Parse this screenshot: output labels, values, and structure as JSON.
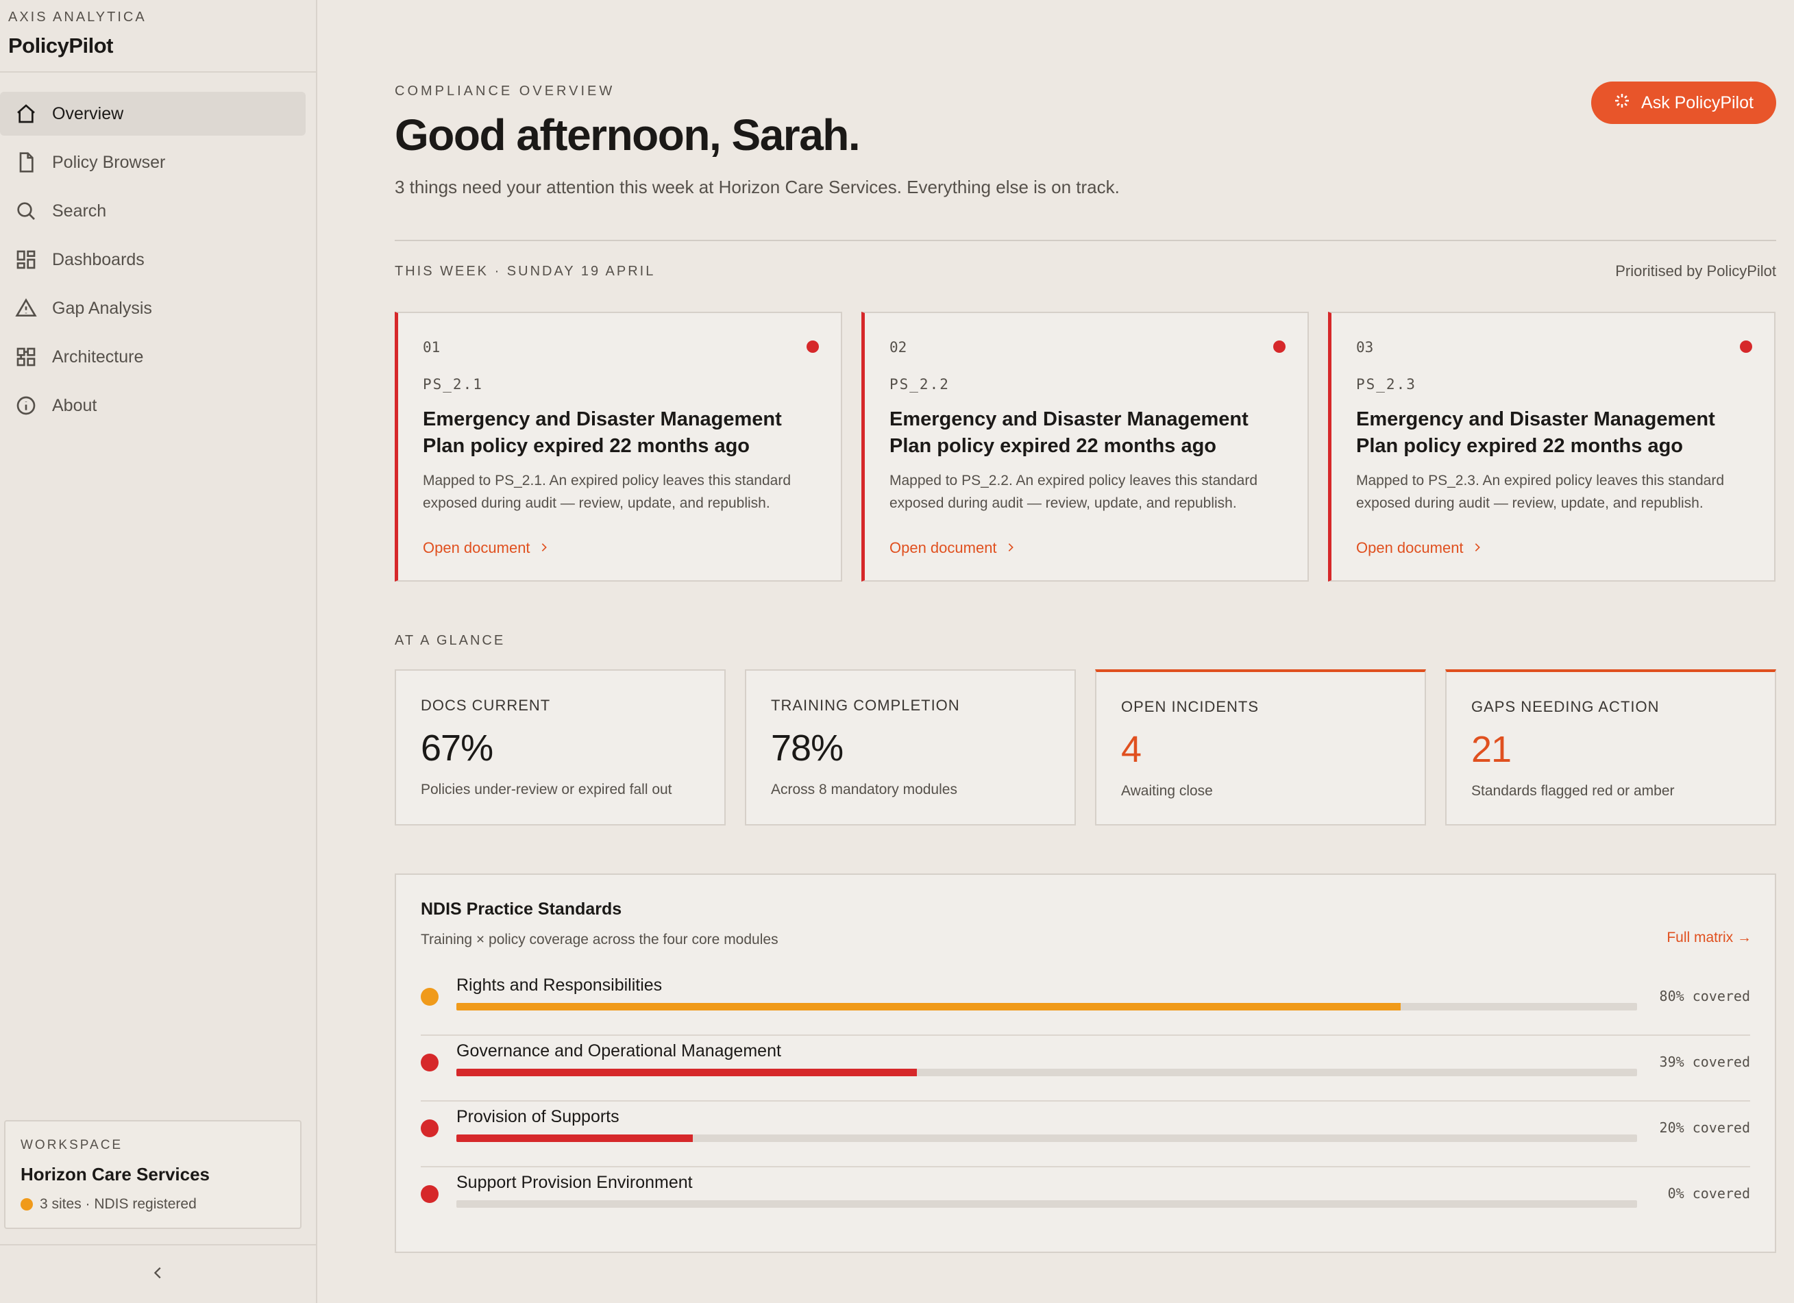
{
  "brand": {
    "org": "AXIS ANALYTICA",
    "app": "PolicyPilot"
  },
  "nav": [
    {
      "label": "Overview",
      "icon": "home-icon",
      "active": true
    },
    {
      "label": "Policy Browser",
      "icon": "document-icon",
      "active": false
    },
    {
      "label": "Search",
      "icon": "search-icon",
      "active": false
    },
    {
      "label": "Dashboards",
      "icon": "dashboard-icon",
      "active": false
    },
    {
      "label": "Gap Analysis",
      "icon": "warning-icon",
      "active": false
    },
    {
      "label": "Architecture",
      "icon": "architecture-icon",
      "active": false
    },
    {
      "label": "About",
      "icon": "info-icon",
      "active": false
    }
  ],
  "workspace": {
    "label": "WORKSPACE",
    "name": "Horizon Care Services",
    "meta": "3 sites · NDIS registered",
    "status_color": "#f09a1a"
  },
  "header": {
    "eyebrow": "COMPLIANCE OVERVIEW",
    "greeting": "Good afternoon, Sarah.",
    "subtitle": "3 things need your attention this week at Horizon Care Services. Everything else is on track.",
    "ask_button": "Ask PolicyPilot"
  },
  "week": {
    "label": "THIS WEEK · SUNDAY 19 APRIL",
    "prioritised": "Prioritised by PolicyPilot"
  },
  "cards": [
    {
      "num": "01",
      "code": "PS_2.1",
      "title": "Emergency and Disaster Management Plan policy expired 22 months ago",
      "desc": "Mapped to PS_2.1. An expired policy leaves this standard exposed during audit — review, update, and republish.",
      "link": "Open document"
    },
    {
      "num": "02",
      "code": "PS_2.2",
      "title": "Emergency and Disaster Management Plan policy expired 22 months ago",
      "desc": "Mapped to PS_2.2. An expired policy leaves this standard exposed during audit — review, update, and republish.",
      "link": "Open document"
    },
    {
      "num": "03",
      "code": "PS_2.3",
      "title": "Emergency and Disaster Management Plan policy expired 22 months ago",
      "desc": "Mapped to PS_2.3. An expired policy leaves this standard exposed during audit — review, update, and republish.",
      "link": "Open document"
    }
  ],
  "glance": {
    "label": "AT A GLANCE",
    "stats": [
      {
        "label": "DOCS CURRENT",
        "value": "67%",
        "note": "Policies under-review or expired fall out",
        "alert": false
      },
      {
        "label": "TRAINING COMPLETION",
        "value": "78%",
        "note": "Across 8 mandatory modules",
        "alert": false
      },
      {
        "label": "OPEN INCIDENTS",
        "value": "4",
        "note": "Awaiting close",
        "alert": true
      },
      {
        "label": "GAPS NEEDING ACTION",
        "value": "21",
        "note": "Standards flagged red or amber",
        "alert": true
      }
    ]
  },
  "standards": {
    "title": "NDIS Practice Standards",
    "subtitle": "Training × policy coverage across the four core modules",
    "link": "Full matrix →",
    "rows": [
      {
        "name": "Rights and Responsibilities",
        "coverage": 0.8,
        "pct_label": "80% covered",
        "color": "#f09a1a"
      },
      {
        "name": "Governance and Operational Management",
        "coverage": 0.39,
        "pct_label": "39% covered",
        "color": "#d6282a"
      },
      {
        "name": "Provision of Supports",
        "coverage": 0.2,
        "pct_label": "20% covered",
        "color": "#d6282a"
      },
      {
        "name": "Support Provision Environment",
        "coverage": 0.0,
        "pct_label": "0% covered",
        "color": "#d6282a"
      }
    ]
  }
}
